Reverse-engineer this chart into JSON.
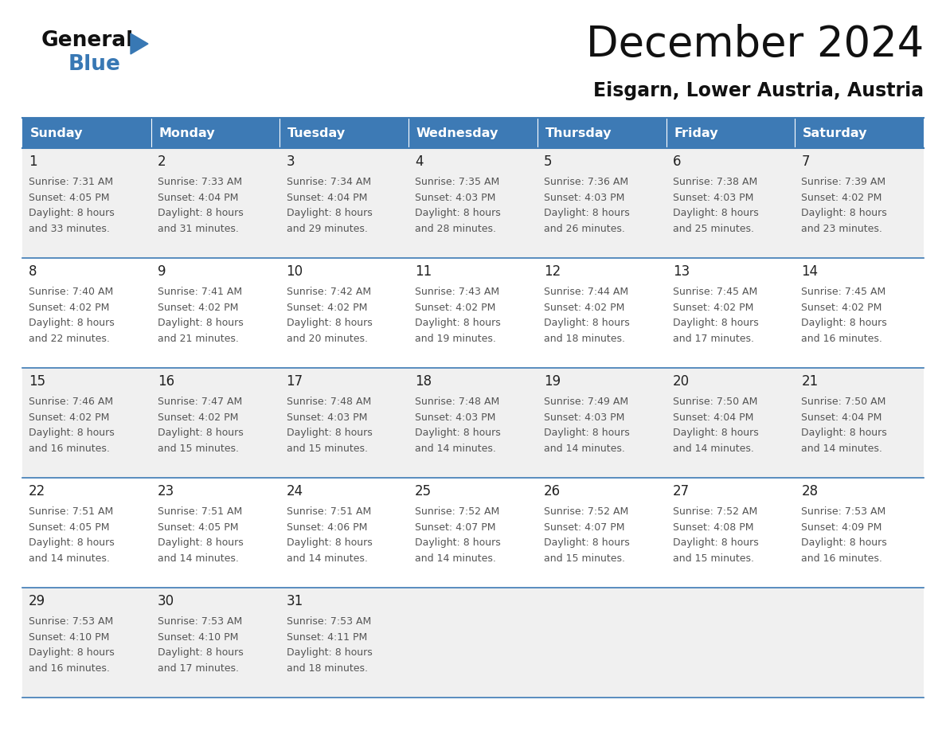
{
  "title": "December 2024",
  "subtitle": "Eisgarn, Lower Austria, Austria",
  "header_bg_color": "#3d7ab5",
  "header_text_color": "#ffffff",
  "days_of_week": [
    "Sunday",
    "Monday",
    "Tuesday",
    "Wednesday",
    "Thursday",
    "Friday",
    "Saturday"
  ],
  "row_bg_even": "#f0f0f0",
  "row_bg_odd": "#ffffff",
  "cell_border_color": "#3d7ab5",
  "title_color": "#111111",
  "subtitle_color": "#111111",
  "day_number_color": "#222222",
  "cell_text_color": "#555555",
  "logo_general_color": "#111111",
  "logo_blue_color": "#3878b4",
  "logo_triangle_color": "#3878b4",
  "calendar_data": [
    [
      {
        "day": 1,
        "sunrise": "7:31 AM",
        "sunset": "4:05 PM",
        "daylight": "8 hours and 33 minutes"
      },
      {
        "day": 2,
        "sunrise": "7:33 AM",
        "sunset": "4:04 PM",
        "daylight": "8 hours and 31 minutes"
      },
      {
        "day": 3,
        "sunrise": "7:34 AM",
        "sunset": "4:04 PM",
        "daylight": "8 hours and 29 minutes"
      },
      {
        "day": 4,
        "sunrise": "7:35 AM",
        "sunset": "4:03 PM",
        "daylight": "8 hours and 28 minutes"
      },
      {
        "day": 5,
        "sunrise": "7:36 AM",
        "sunset": "4:03 PM",
        "daylight": "8 hours and 26 minutes"
      },
      {
        "day": 6,
        "sunrise": "7:38 AM",
        "sunset": "4:03 PM",
        "daylight": "8 hours and 25 minutes"
      },
      {
        "day": 7,
        "sunrise": "7:39 AM",
        "sunset": "4:02 PM",
        "daylight": "8 hours and 23 minutes"
      }
    ],
    [
      {
        "day": 8,
        "sunrise": "7:40 AM",
        "sunset": "4:02 PM",
        "daylight": "8 hours and 22 minutes"
      },
      {
        "day": 9,
        "sunrise": "7:41 AM",
        "sunset": "4:02 PM",
        "daylight": "8 hours and 21 minutes"
      },
      {
        "day": 10,
        "sunrise": "7:42 AM",
        "sunset": "4:02 PM",
        "daylight": "8 hours and 20 minutes"
      },
      {
        "day": 11,
        "sunrise": "7:43 AM",
        "sunset": "4:02 PM",
        "daylight": "8 hours and 19 minutes"
      },
      {
        "day": 12,
        "sunrise": "7:44 AM",
        "sunset": "4:02 PM",
        "daylight": "8 hours and 18 minutes"
      },
      {
        "day": 13,
        "sunrise": "7:45 AM",
        "sunset": "4:02 PM",
        "daylight": "8 hours and 17 minutes"
      },
      {
        "day": 14,
        "sunrise": "7:45 AM",
        "sunset": "4:02 PM",
        "daylight": "8 hours and 16 minutes"
      }
    ],
    [
      {
        "day": 15,
        "sunrise": "7:46 AM",
        "sunset": "4:02 PM",
        "daylight": "8 hours and 16 minutes"
      },
      {
        "day": 16,
        "sunrise": "7:47 AM",
        "sunset": "4:02 PM",
        "daylight": "8 hours and 15 minutes"
      },
      {
        "day": 17,
        "sunrise": "7:48 AM",
        "sunset": "4:03 PM",
        "daylight": "8 hours and 15 minutes"
      },
      {
        "day": 18,
        "sunrise": "7:48 AM",
        "sunset": "4:03 PM",
        "daylight": "8 hours and 14 minutes"
      },
      {
        "day": 19,
        "sunrise": "7:49 AM",
        "sunset": "4:03 PM",
        "daylight": "8 hours and 14 minutes"
      },
      {
        "day": 20,
        "sunrise": "7:50 AM",
        "sunset": "4:04 PM",
        "daylight": "8 hours and 14 minutes"
      },
      {
        "day": 21,
        "sunrise": "7:50 AM",
        "sunset": "4:04 PM",
        "daylight": "8 hours and 14 minutes"
      }
    ],
    [
      {
        "day": 22,
        "sunrise": "7:51 AM",
        "sunset": "4:05 PM",
        "daylight": "8 hours and 14 minutes"
      },
      {
        "day": 23,
        "sunrise": "7:51 AM",
        "sunset": "4:05 PM",
        "daylight": "8 hours and 14 minutes"
      },
      {
        "day": 24,
        "sunrise": "7:51 AM",
        "sunset": "4:06 PM",
        "daylight": "8 hours and 14 minutes"
      },
      {
        "day": 25,
        "sunrise": "7:52 AM",
        "sunset": "4:07 PM",
        "daylight": "8 hours and 14 minutes"
      },
      {
        "day": 26,
        "sunrise": "7:52 AM",
        "sunset": "4:07 PM",
        "daylight": "8 hours and 15 minutes"
      },
      {
        "day": 27,
        "sunrise": "7:52 AM",
        "sunset": "4:08 PM",
        "daylight": "8 hours and 15 minutes"
      },
      {
        "day": 28,
        "sunrise": "7:53 AM",
        "sunset": "4:09 PM",
        "daylight": "8 hours and 16 minutes"
      }
    ],
    [
      {
        "day": 29,
        "sunrise": "7:53 AM",
        "sunset": "4:10 PM",
        "daylight": "8 hours and 16 minutes"
      },
      {
        "day": 30,
        "sunrise": "7:53 AM",
        "sunset": "4:10 PM",
        "daylight": "8 hours and 17 minutes"
      },
      {
        "day": 31,
        "sunrise": "7:53 AM",
        "sunset": "4:11 PM",
        "daylight": "8 hours and 18 minutes"
      },
      null,
      null,
      null,
      null
    ]
  ]
}
